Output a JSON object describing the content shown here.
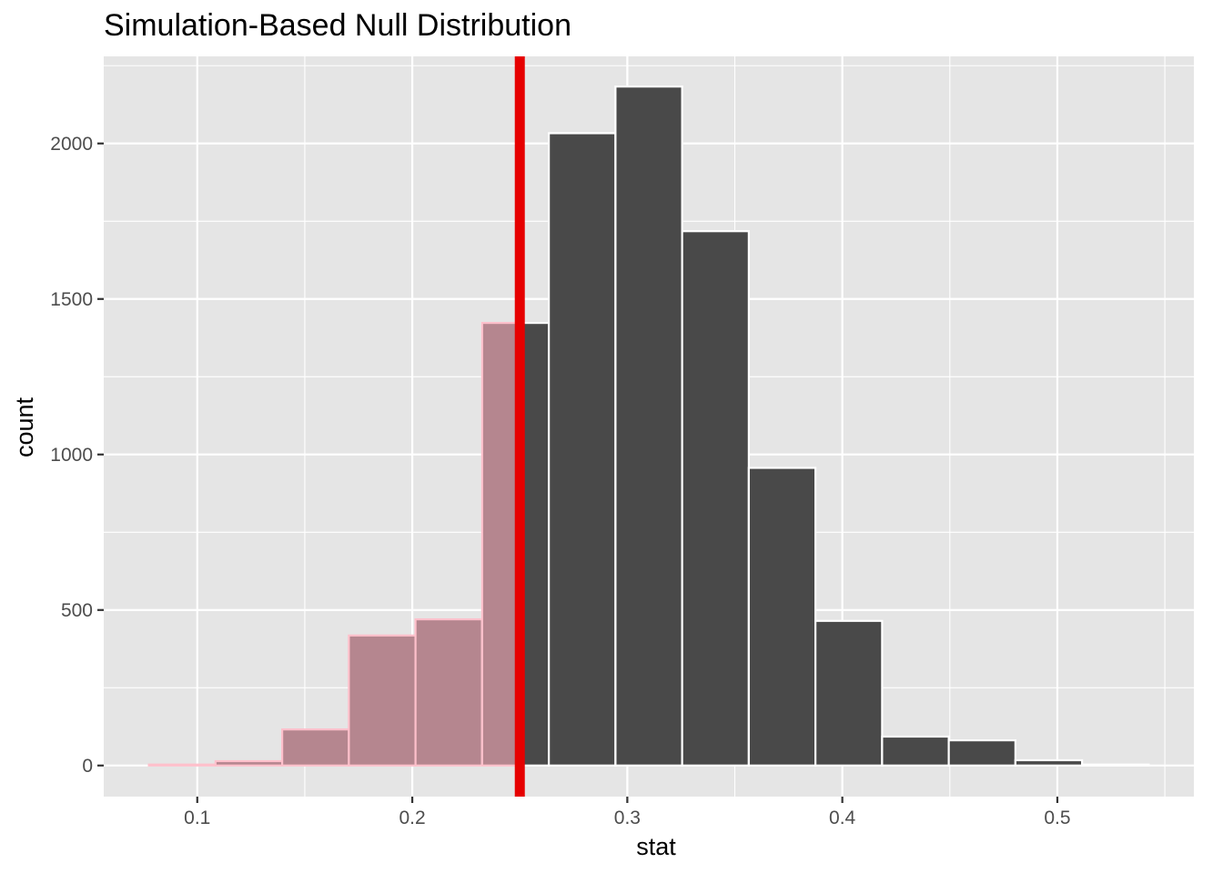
{
  "chart_data": {
    "type": "bar",
    "title": "Simulation-Based Null Distribution",
    "xlabel": "stat",
    "ylabel": "count",
    "xlim": [
      0.0565,
      0.5635
    ],
    "ylim": [
      -100,
      2280
    ],
    "x_ticks": [
      0.1,
      0.2,
      0.3,
      0.4,
      0.5
    ],
    "x_tick_labels": [
      "0.1",
      "0.2",
      "0.3",
      "0.4",
      "0.5"
    ],
    "y_ticks": [
      0,
      500,
      1000,
      1500,
      2000
    ],
    "y_tick_labels": [
      "0",
      "500",
      "1000",
      "1500",
      "2000"
    ],
    "grid": true,
    "bins": [
      {
        "x0": 0.0775,
        "x1": 0.1085,
        "count": 3,
        "shaded": true
      },
      {
        "x0": 0.1085,
        "x1": 0.1395,
        "count": 14,
        "shaded": true
      },
      {
        "x0": 0.1395,
        "x1": 0.1705,
        "count": 116,
        "shaded": true
      },
      {
        "x0": 0.1705,
        "x1": 0.2015,
        "count": 418,
        "shaded": true
      },
      {
        "x0": 0.2015,
        "x1": 0.2325,
        "count": 470,
        "shaded": true
      },
      {
        "x0": 0.2325,
        "x1": 0.2635,
        "count": 1423,
        "shaded": "partial"
      },
      {
        "x0": 0.2635,
        "x1": 0.2945,
        "count": 2033,
        "shaded": false
      },
      {
        "x0": 0.2945,
        "x1": 0.3255,
        "count": 2183,
        "shaded": false
      },
      {
        "x0": 0.3255,
        "x1": 0.3565,
        "count": 1718,
        "shaded": false
      },
      {
        "x0": 0.3565,
        "x1": 0.3875,
        "count": 957,
        "shaded": false
      },
      {
        "x0": 0.3875,
        "x1": 0.4185,
        "count": 465,
        "shaded": false
      },
      {
        "x0": 0.4185,
        "x1": 0.4495,
        "count": 93,
        "shaded": false
      },
      {
        "x0": 0.4495,
        "x1": 0.4805,
        "count": 81,
        "shaded": false
      },
      {
        "x0": 0.4805,
        "x1": 0.5115,
        "count": 17,
        "shaded": false
      },
      {
        "x0": 0.5115,
        "x1": 0.5425,
        "count": 3,
        "shaded": false
      }
    ],
    "observed_stat": 0.25,
    "colors": {
      "panel_background": "#e5e5e5",
      "gridline": "#ffffff",
      "bar_fill": "#494949",
      "bar_outline": "#ffffff",
      "shaded_fill": "#b5868f",
      "shaded_outline": "#ffc0cb",
      "observed_line": "#e60000"
    }
  }
}
